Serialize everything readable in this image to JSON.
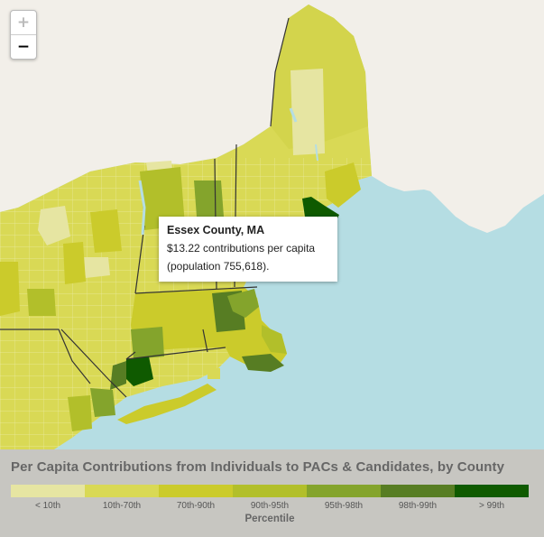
{
  "zoom": {
    "in_label": "+",
    "out_label": "−"
  },
  "tooltip": {
    "county": "Essex County, MA",
    "value_text": "$13.22 contributions per capita",
    "population_text": "(population 755,618)."
  },
  "legend": {
    "title": "Per Capita Contributions from Individuals to PACs & Candidates, by County",
    "axis_label": "Percentile",
    "bins": [
      {
        "label": "< 10th",
        "color": "#e6e5a2"
      },
      {
        "label": "10th-70th",
        "color": "#d9d955"
      },
      {
        "label": "70th-90th",
        "color": "#cbcb2b"
      },
      {
        "label": "90th-95th",
        "color": "#b2bf2a"
      },
      {
        "label": "95th-98th",
        "color": "#84a42c"
      },
      {
        "label": "98th-99th",
        "color": "#577d23"
      },
      {
        "label": "> 99th",
        "color": "#0f5a00"
      }
    ]
  },
  "colors": {
    "water": "#b5dde3",
    "land_outside": "#f2efe9",
    "border": "#333333"
  }
}
